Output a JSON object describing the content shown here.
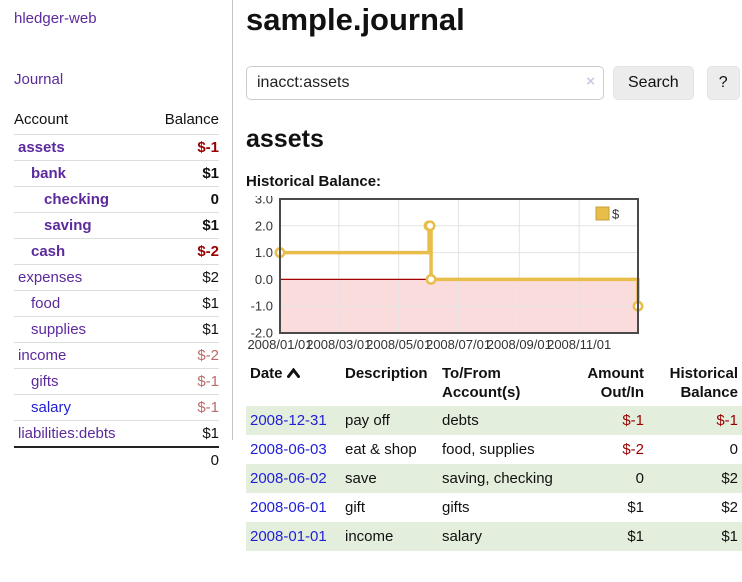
{
  "brand": {
    "label": "hledger-web"
  },
  "sidebar": {
    "journal_link": "Journal",
    "accounts": {
      "header_account": "Account",
      "header_balance": "Balance",
      "rows": [
        {
          "name": "assets",
          "balance": "$-1"
        },
        {
          "name": "bank",
          "balance": "$1"
        },
        {
          "name": "checking",
          "balance": "0"
        },
        {
          "name": "saving",
          "balance": "$1"
        },
        {
          "name": "cash",
          "balance": "$-2"
        },
        {
          "name": "expenses",
          "balance": "$2"
        },
        {
          "name": "food",
          "balance": "$1"
        },
        {
          "name": "supplies",
          "balance": "$1"
        },
        {
          "name": "income",
          "balance": "$-2"
        },
        {
          "name": "gifts",
          "balance": "$-1"
        },
        {
          "name": "salary",
          "balance": "$-1"
        },
        {
          "name": "liabilities:debts",
          "balance": "$1"
        }
      ],
      "total": "0"
    }
  },
  "main": {
    "title": "sample.journal",
    "search": {
      "query": "inacct:assets",
      "clear_icon": "×",
      "search_button": "Search",
      "help_button": "?"
    },
    "account_heading": "assets",
    "chart_title": "Historical Balance:"
  },
  "chart_data": {
    "type": "line",
    "title": "Historical Balance",
    "step": true,
    "xlim": [
      "2008-01-01",
      "2008-12-31"
    ],
    "ylim": [
      -2,
      3
    ],
    "grid": true,
    "legend": {
      "position": "top-right",
      "entries": [
        {
          "label": "$",
          "color": "#e8bd4a"
        }
      ]
    },
    "x_ticks": [
      {
        "date": "2008-01-01",
        "label": "2008/01/01"
      },
      {
        "date": "2008-03-01",
        "label": "2008/03/01"
      },
      {
        "date": "2008-05-01",
        "label": "2008/05/01"
      },
      {
        "date": "2008-07-01",
        "label": "2008/07/01"
      },
      {
        "date": "2008-09-01",
        "label": "2008/09/01"
      },
      {
        "date": "2008-11-01",
        "label": "2008/11/01"
      }
    ],
    "y_ticks": [
      {
        "value": 3,
        "label": "3.0"
      },
      {
        "value": 2,
        "label": "2.0"
      },
      {
        "value": 1,
        "label": "1.0"
      },
      {
        "value": 0,
        "label": "0.0"
      },
      {
        "value": -1,
        "label": "-1.0"
      },
      {
        "value": -2,
        "label": "-2.0"
      }
    ],
    "series": [
      {
        "name": "$",
        "color": "#e8bd4a",
        "points": [
          {
            "date": "2008-01-01",
            "value": 1
          },
          {
            "date": "2008-06-01",
            "value": 2
          },
          {
            "date": "2008-06-02",
            "value": 2
          },
          {
            "date": "2008-06-03",
            "value": 0
          },
          {
            "date": "2008-12-31",
            "value": -1
          }
        ]
      }
    ],
    "negative_region_color": "#fadcdd",
    "zero_line_color": "#a40000",
    "frame_color": "#4a4a4a",
    "grid_color": "#e3e3e3"
  },
  "register": {
    "headers": {
      "date": "Date",
      "sort_icon": "chevron-up",
      "description": "Description",
      "accounts": "To/From Account(s)",
      "amount": "Amount Out/In",
      "balance": "Historical Balance"
    },
    "rows": [
      {
        "date": "2008-12-31",
        "description": "pay off",
        "accounts": "debts",
        "amount": "$-1",
        "balance": "$-1"
      },
      {
        "date": "2008-06-03",
        "description": "eat & shop",
        "accounts": "food, supplies",
        "amount": "$-2",
        "balance": "0"
      },
      {
        "date": "2008-06-02",
        "description": "save",
        "accounts": "saving, checking",
        "amount": "0",
        "balance": "$2"
      },
      {
        "date": "2008-06-01",
        "description": "gift",
        "accounts": "gifts",
        "amount": "$1",
        "balance": "$2"
      },
      {
        "date": "2008-01-01",
        "description": "income",
        "accounts": "salary",
        "amount": "$1",
        "balance": "$1"
      }
    ]
  }
}
